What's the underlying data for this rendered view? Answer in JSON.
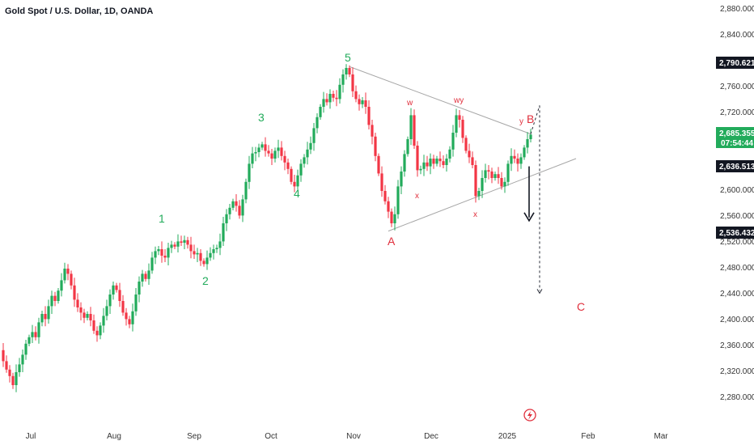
{
  "title": "Gold Spot / U.S. Dollar, 1D, OANDA",
  "colors": {
    "up": "#22ab5b",
    "down": "#f23645",
    "grid": "#e6e6e6",
    "trend": "#a6a6a6",
    "tag_dark": "#131722",
    "tag_green": "#22ab5b",
    "wave_green": "#22ab5b",
    "wave_red": "#e0303d"
  },
  "price_tags": {
    "top": "2,790.621",
    "current": "2,685.355",
    "countdown": "07:54:44",
    "mid": "2,636.513",
    "low": "2,536.432"
  },
  "wave_labels": {
    "w1": "1",
    "w2": "2",
    "w3": "3",
    "w4": "4",
    "w5": "5",
    "A": "A",
    "B": "B",
    "C": "C",
    "w": "w",
    "x1": "x",
    "wy": "wy",
    "x2": "x",
    "y": "y"
  },
  "chart_data": {
    "type": "candlestick",
    "title": "Gold Spot / U.S. Dollar, 1D, OANDA",
    "x_tick_labels": [
      "Jul",
      "Aug",
      "Sep",
      "Oct",
      "Nov",
      "Dec",
      "2025",
      "Feb",
      "Mar"
    ],
    "y_tick_labels": [
      "2,280.000",
      "2,320.000",
      "2,360.000",
      "2,400.000",
      "2,440.000",
      "2,480.000",
      "2,520.000",
      "2,560.000",
      "2,600.000",
      "2,640.000",
      "2,680.000",
      "2,720.000",
      "2,760.000",
      "2,800.000",
      "2,840.000",
      "2,880.000"
    ],
    "y_ticks": [
      2280,
      2320,
      2360,
      2400,
      2440,
      2480,
      2520,
      2560,
      2600,
      2640,
      2680,
      2720,
      2760,
      2800,
      2840,
      2880
    ],
    "ylim": [
      2268,
      2888
    ],
    "grid": false,
    "close_path": [
      [
        0,
        2352
      ],
      [
        4,
        2335
      ],
      [
        8,
        2322
      ],
      [
        12,
        2312
      ],
      [
        16,
        2298
      ],
      [
        20,
        2318
      ],
      [
        24,
        2330
      ],
      [
        28,
        2345
      ],
      [
        32,
        2362
      ],
      [
        36,
        2372
      ],
      [
        40,
        2380
      ],
      [
        44,
        2372
      ],
      [
        48,
        2395
      ],
      [
        52,
        2408
      ],
      [
        56,
        2400
      ],
      [
        60,
        2420
      ],
      [
        64,
        2436
      ],
      [
        68,
        2428
      ],
      [
        72,
        2444
      ],
      [
        76,
        2460
      ],
      [
        80,
        2478
      ],
      [
        84,
        2470
      ],
      [
        88,
        2452
      ],
      [
        92,
        2430
      ],
      [
        96,
        2418
      ],
      [
        100,
        2410
      ],
      [
        104,
        2402
      ],
      [
        108,
        2408
      ],
      [
        112,
        2398
      ],
      [
        116,
        2382
      ],
      [
        120,
        2375
      ],
      [
        124,
        2390
      ],
      [
        128,
        2405
      ],
      [
        132,
        2420
      ],
      [
        136,
        2438
      ],
      [
        140,
        2452
      ],
      [
        144,
        2445
      ],
      [
        148,
        2428
      ],
      [
        152,
        2410
      ],
      [
        156,
        2400
      ],
      [
        160,
        2392
      ],
      [
        164,
        2412
      ],
      [
        168,
        2438
      ],
      [
        172,
        2458
      ],
      [
        176,
        2470
      ],
      [
        180,
        2462
      ],
      [
        184,
        2475
      ],
      [
        188,
        2495
      ],
      [
        192,
        2505
      ],
      [
        196,
        2508
      ],
      [
        200,
        2498
      ],
      [
        204,
        2495
      ],
      [
        208,
        2510
      ],
      [
        212,
        2515
      ],
      [
        216,
        2512
      ],
      [
        220,
        2520
      ],
      [
        224,
        2518
      ],
      [
        228,
        2522
      ],
      [
        232,
        2515
      ],
      [
        236,
        2505
      ],
      [
        240,
        2500
      ],
      [
        244,
        2502
      ],
      [
        248,
        2490
      ],
      [
        252,
        2485
      ],
      [
        256,
        2495
      ],
      [
        260,
        2502
      ],
      [
        264,
        2508
      ],
      [
        268,
        2510
      ],
      [
        272,
        2520
      ],
      [
        276,
        2548
      ],
      [
        280,
        2562
      ],
      [
        284,
        2572
      ],
      [
        288,
        2582
      ],
      [
        292,
        2575
      ],
      [
        296,
        2560
      ],
      [
        300,
        2585
      ],
      [
        304,
        2612
      ],
      [
        308,
        2640
      ],
      [
        312,
        2656
      ],
      [
        316,
        2658
      ],
      [
        320,
        2665
      ],
      [
        324,
        2670
      ],
      [
        328,
        2660
      ],
      [
        332,
        2656
      ],
      [
        336,
        2648
      ],
      [
        340,
        2660
      ],
      [
        344,
        2665
      ],
      [
        348,
        2652
      ],
      [
        352,
        2642
      ],
      [
        356,
        2632
      ],
      [
        360,
        2612
      ],
      [
        364,
        2605
      ],
      [
        368,
        2622
      ],
      [
        372,
        2640
      ],
      [
        376,
        2650
      ],
      [
        380,
        2662
      ],
      [
        384,
        2672
      ],
      [
        388,
        2695
      ],
      [
        392,
        2712
      ],
      [
        396,
        2728
      ],
      [
        400,
        2740
      ],
      [
        404,
        2735
      ],
      [
        408,
        2748
      ],
      [
        412,
        2742
      ],
      [
        416,
        2740
      ],
      [
        420,
        2762
      ],
      [
        424,
        2778
      ],
      [
        428,
        2788
      ],
      [
        432,
        2778
      ],
      [
        436,
        2752
      ],
      [
        440,
        2740
      ],
      [
        444,
        2732
      ],
      [
        448,
        2738
      ],
      [
        452,
        2728
      ],
      [
        456,
        2700
      ],
      [
        460,
        2682
      ],
      [
        464,
        2652
      ],
      [
        468,
        2625
      ],
      [
        472,
        2598
      ],
      [
        476,
        2582
      ],
      [
        480,
        2566
      ],
      [
        484,
        2548
      ],
      [
        488,
        2562
      ],
      [
        492,
        2605
      ],
      [
        496,
        2628
      ],
      [
        500,
        2655
      ],
      [
        504,
        2678
      ],
      [
        508,
        2715
      ],
      [
        512,
        2668
      ],
      [
        516,
        2630
      ],
      [
        520,
        2632
      ],
      [
        524,
        2642
      ],
      [
        528,
        2636
      ],
      [
        532,
        2648
      ],
      [
        536,
        2640
      ],
      [
        540,
        2648
      ],
      [
        544,
        2644
      ],
      [
        548,
        2638
      ],
      [
        552,
        2648
      ],
      [
        556,
        2662
      ],
      [
        560,
        2688
      ],
      [
        564,
        2715
      ],
      [
        568,
        2708
      ],
      [
        572,
        2680
      ],
      [
        576,
        2660
      ],
      [
        580,
        2650
      ],
      [
        584,
        2638
      ],
      [
        588,
        2590
      ],
      [
        592,
        2598
      ],
      [
        596,
        2618
      ],
      [
        600,
        2630
      ],
      [
        604,
        2628
      ],
      [
        608,
        2618
      ],
      [
        612,
        2624
      ],
      [
        616,
        2618
      ],
      [
        620,
        2605
      ],
      [
        624,
        2612
      ],
      [
        628,
        2640
      ],
      [
        632,
        2652
      ],
      [
        636,
        2648
      ],
      [
        640,
        2640
      ],
      [
        644,
        2650
      ],
      [
        648,
        2665
      ],
      [
        652,
        2678
      ],
      [
        656,
        2685
      ]
    ],
    "annotations": {
      "upper_trendline": [
        [
          432,
          2790
        ],
        [
          656,
          2686
        ]
      ],
      "lower_trendline": [
        [
          480,
          2536
        ],
        [
          712,
          2648
        ]
      ],
      "projection_arrow_solid": [
        2636,
        2552
      ],
      "projection_arrow_dashed": [
        2730,
        2440
      ]
    }
  }
}
